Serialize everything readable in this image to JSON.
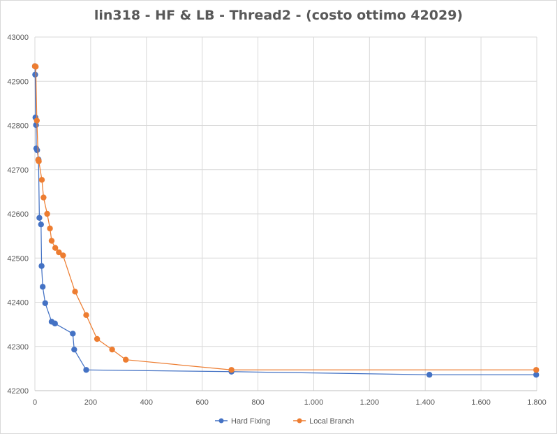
{
  "chart_data": {
    "type": "scatter",
    "title": "lin318 - HF & LB - Thread2 - (costo ottimo 42029)",
    "xlabel": "",
    "ylabel": "",
    "xlim": [
      0,
      1800
    ],
    "ylim": [
      42200,
      43000
    ],
    "x_ticks": [
      0,
      200,
      400,
      600,
      800,
      1000,
      1200,
      1400,
      1600,
      1800
    ],
    "x_tick_labels": [
      "0",
      "200",
      "400",
      "600",
      "800",
      "1.000",
      "1.200",
      "1.400",
      "1.600",
      "1.800"
    ],
    "y_ticks": [
      42200,
      42300,
      42400,
      42500,
      42600,
      42700,
      42800,
      42900,
      43000
    ],
    "y_tick_labels": [
      "42200",
      "42300",
      "42400",
      "42500",
      "42600",
      "42700",
      "42800",
      "42900",
      "43000"
    ],
    "grid": true,
    "legend_position": "bottom",
    "series": [
      {
        "name": "Hard Fixing",
        "color": "#4472c4",
        "points": [
          [
            0,
            42934
          ],
          [
            1,
            42915
          ],
          [
            2,
            42818
          ],
          [
            4,
            42801
          ],
          [
            5,
            42748
          ],
          [
            8,
            42744
          ],
          [
            13,
            42723
          ],
          [
            16,
            42591
          ],
          [
            22,
            42576
          ],
          [
            24,
            42482
          ],
          [
            28,
            42435
          ],
          [
            37,
            42398
          ],
          [
            60,
            42356
          ],
          [
            72,
            42352
          ],
          [
            136,
            42329
          ],
          [
            141,
            42293
          ],
          [
            184,
            42247
          ],
          [
            705,
            42243
          ],
          [
            1415,
            42236
          ],
          [
            1798,
            42236
          ]
        ]
      },
      {
        "name": "Local Branch",
        "color": "#ed7d31",
        "points": [
          [
            0,
            42934
          ],
          [
            3,
            42933
          ],
          [
            7,
            42811
          ],
          [
            12,
            42722
          ],
          [
            14,
            42719
          ],
          [
            25,
            42677
          ],
          [
            31,
            42637
          ],
          [
            44,
            42600
          ],
          [
            54,
            42567
          ],
          [
            60,
            42539
          ],
          [
            73,
            42523
          ],
          [
            86,
            42513
          ],
          [
            101,
            42506
          ],
          [
            144,
            42424
          ],
          [
            184,
            42371
          ],
          [
            223,
            42317
          ],
          [
            277,
            42293
          ],
          [
            326,
            42270
          ],
          [
            705,
            42247
          ],
          [
            1798,
            42247
          ]
        ]
      }
    ]
  }
}
